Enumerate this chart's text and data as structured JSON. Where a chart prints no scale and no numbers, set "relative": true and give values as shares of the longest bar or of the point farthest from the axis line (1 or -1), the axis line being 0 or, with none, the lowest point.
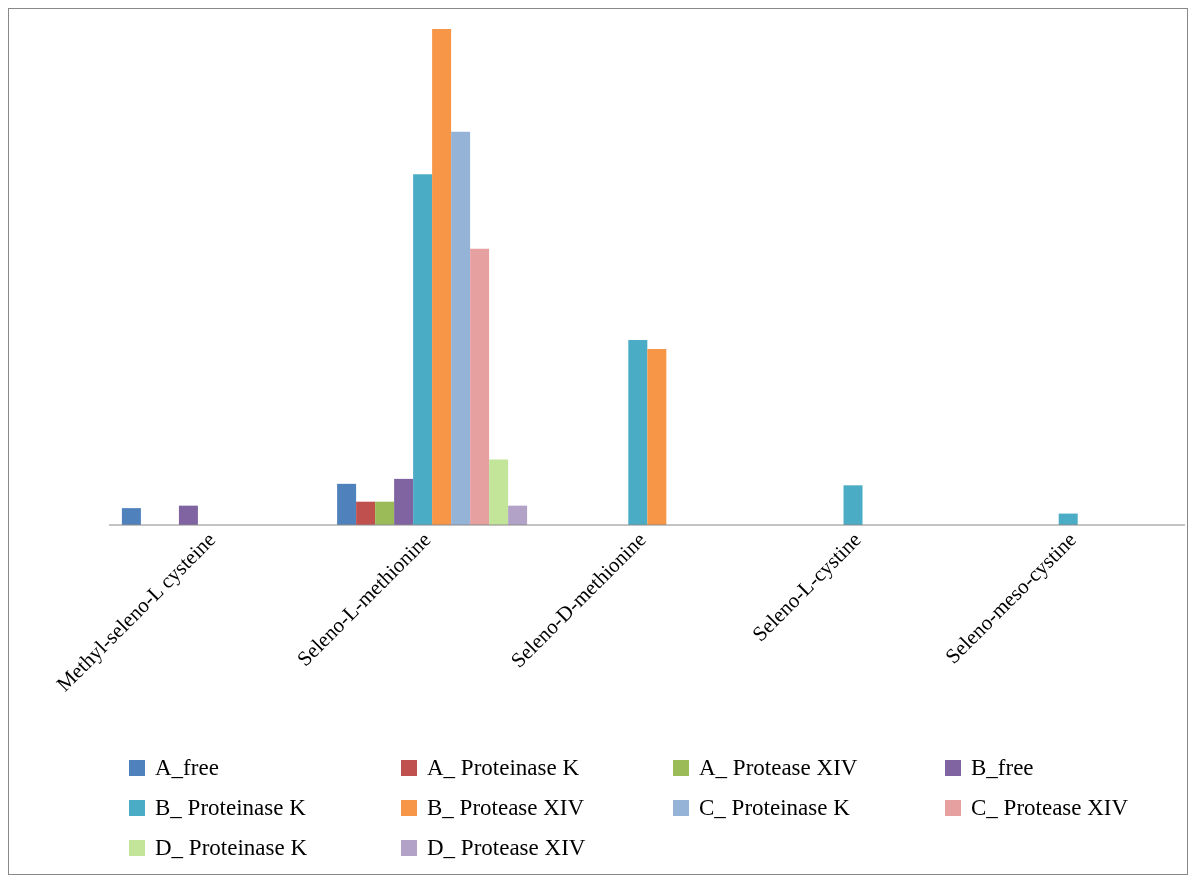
{
  "chart_data": {
    "type": "bar",
    "relative": true,
    "legend": "bottom",
    "categories": [
      "Methyl-seleno-L cysteine",
      "Seleno-L-methionine",
      "Seleno-D-methionine",
      "Seleno-L-cystine",
      "Seleno-meso-cystine"
    ],
    "series": [
      {
        "name": "A_free",
        "color": "#4f81bd",
        "values": [
          0.034,
          0.083,
          null,
          null,
          null
        ]
      },
      {
        "name": "A_ Proteinase K",
        "color": "#c0504d",
        "values": [
          null,
          0.047,
          null,
          null,
          null
        ]
      },
      {
        "name": "A_ Protease XIV",
        "color": "#9bbb59",
        "values": [
          null,
          0.047,
          null,
          null,
          null
        ]
      },
      {
        "name": "B_free",
        "color": "#8064a2",
        "values": [
          0.039,
          0.093,
          null,
          null,
          null
        ]
      },
      {
        "name": "B_ Proteinase K",
        "color": "#4bacc6",
        "values": [
          null,
          0.707,
          0.373,
          0.08,
          0.023
        ]
      },
      {
        "name": "B_ Protease XIV",
        "color": "#f79646",
        "values": [
          null,
          1,
          0.355,
          null,
          null
        ]
      },
      {
        "name": "C_ Proteinase K",
        "color": "#95b3d7",
        "values": [
          null,
          0.793,
          null,
          null,
          null
        ]
      },
      {
        "name": "C_ Protease XIV",
        "color": "#e6a0a0",
        "values": [
          null,
          0.557,
          null,
          null,
          null
        ]
      },
      {
        "name": "D_ Proteinase K",
        "color": "#c3e59a",
        "values": [
          null,
          0.132,
          null,
          null,
          null
        ]
      },
      {
        "name": "D_ Protease XIV",
        "color": "#b3a2c7",
        "values": [
          null,
          0.039,
          null,
          null,
          null
        ]
      }
    ]
  }
}
